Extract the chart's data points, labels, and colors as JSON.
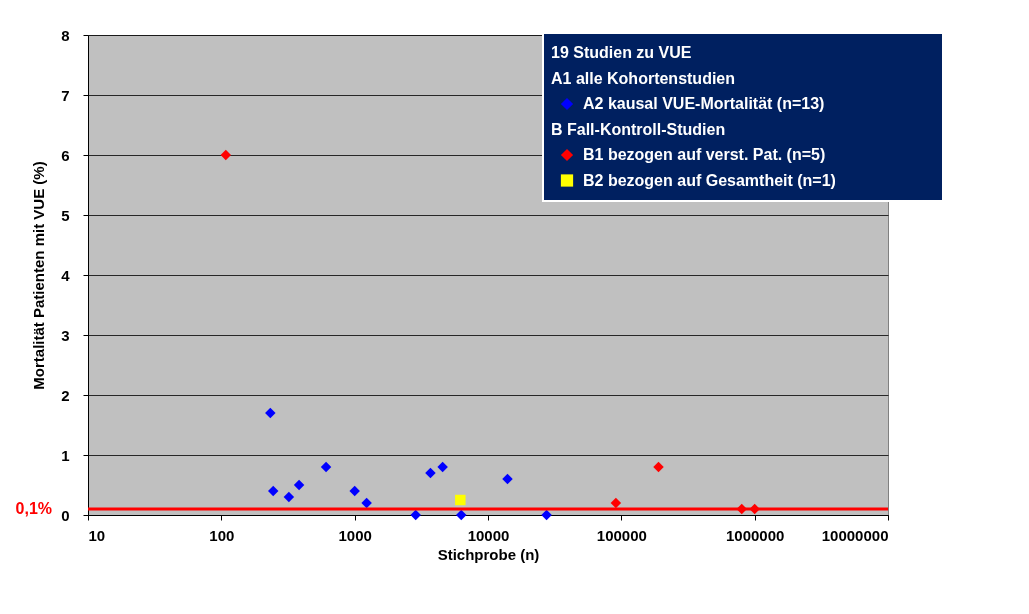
{
  "chart_data": {
    "type": "scatter",
    "xlabel": "Stichprobe (n)",
    "ylabel": "Mortalität Patienten mit VUE (%)",
    "legend_title": "19 Studien zu VUE",
    "annotations": [
      "A1 alle Kohortenstudien",
      "B Fall-Kontroll-Studien"
    ],
    "series": [
      {
        "name": "A2 kausal VUE-Mortalität (n=13)",
        "color": "#0000ff",
        "marker": "diamond",
        "x": [
          233,
          245,
          321,
          383,
          610,
          1000,
          1230,
          2870,
          3700,
          4570,
          6300,
          14000,
          27500
        ],
        "values": [
          1.7,
          0.4,
          0.3,
          0.5,
          0.8,
          0.4,
          0.2,
          0,
          0.7,
          0.8,
          0,
          0.6,
          0
        ]
      },
      {
        "name": "B1 bezogen auf verst. Pat. (n=5)",
        "color": "#ff0000",
        "marker": "diamond",
        "x": [
          108,
          91000,
          190000,
          800000,
          1000000
        ],
        "values": [
          6,
          0.2,
          0.8,
          0.1,
          0.1
        ]
      },
      {
        "name": "B2 bezogen auf Gesamtheit (n=1)",
        "color": "#ffff00",
        "marker": "square",
        "x": [
          6200
        ],
        "values": [
          0.25
        ]
      }
    ],
    "xlim": [
      10,
      10000000
    ],
    "xticks": [
      10,
      100,
      1000,
      10000,
      100000,
      1000000,
      10000000
    ],
    "ylim": [
      0,
      8
    ],
    "yticks": [
      0,
      1,
      2,
      3,
      4,
      5,
      6,
      7,
      8
    ],
    "log": "x",
    "grid": "y",
    "legend": "top right",
    "ref_lines": [
      {
        "axis": "y",
        "value": 0.1,
        "label": "0,1%",
        "color": "#ff0000"
      }
    ]
  }
}
